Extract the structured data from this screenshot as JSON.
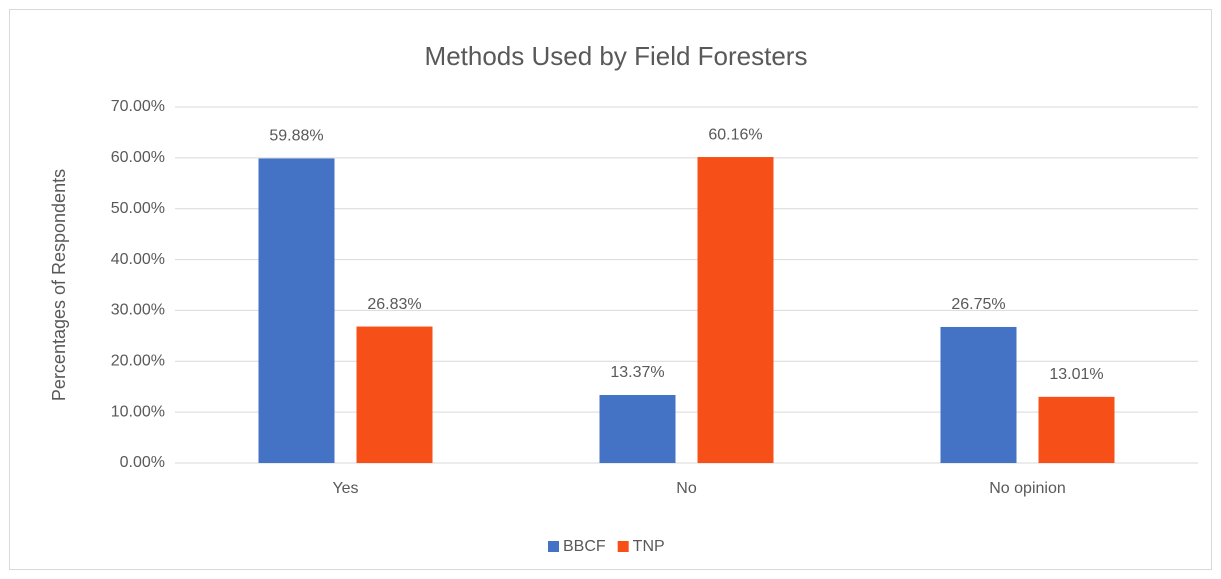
{
  "chart_data": {
    "type": "bar",
    "title": "Methods Used by Field Foresters",
    "y_label": "Percentages of Respondents",
    "categories": [
      "Yes",
      "No",
      "No opinion"
    ],
    "series": [
      {
        "name": "BBCF",
        "color": "#4472c4",
        "values": [
          59.88,
          13.37,
          26.75
        ],
        "value_labels": [
          "59.88%",
          "13.37%",
          "26.75%"
        ]
      },
      {
        "name": "TNP",
        "color": "#f74f18",
        "values": [
          26.83,
          60.16,
          13.01
        ],
        "value_labels": [
          "26.83%",
          "60.16%",
          "13.01%"
        ]
      }
    ],
    "ylim": [
      0,
      70
    ],
    "yticks": [
      {
        "value": 0,
        "label": "0.00%"
      },
      {
        "value": 10,
        "label": "10.00%"
      },
      {
        "value": 20,
        "label": "20.00%"
      },
      {
        "value": 30,
        "label": "30.00%"
      },
      {
        "value": 40,
        "label": "40.00%"
      },
      {
        "value": 50,
        "label": "50.00%"
      },
      {
        "value": 60,
        "label": "60.00%"
      },
      {
        "value": 70,
        "label": "70.00%"
      }
    ],
    "grid": true,
    "legend": "bottom"
  }
}
